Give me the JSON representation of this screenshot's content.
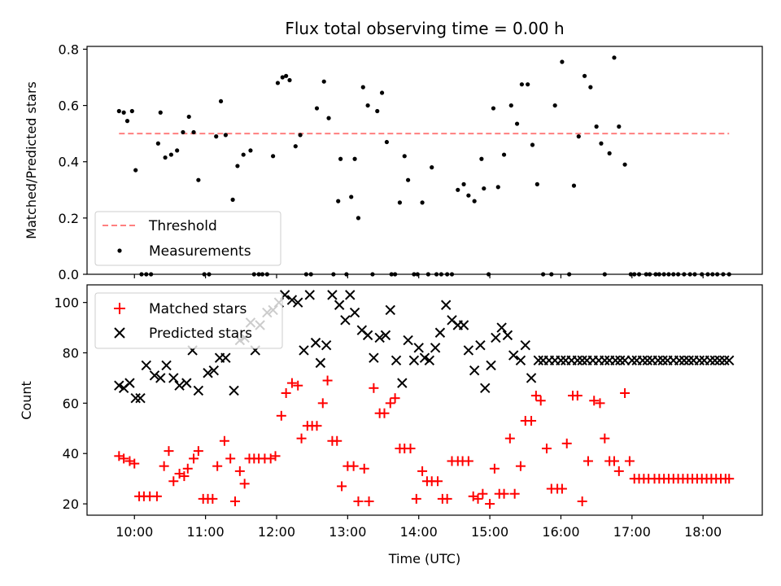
{
  "chart_data": [
    {
      "type": "scatter",
      "title": "Flux total observing time = 0.00 h",
      "xlabel": "",
      "ylabel": "Matched/Predicted stars",
      "x_unit": "hours UTC",
      "xlim": [
        "09:20",
        "18:50"
      ],
      "ylim": [
        0,
        0.81
      ],
      "yticks": [
        0.0,
        0.2,
        0.4,
        0.6,
        0.8
      ],
      "ytick_labels": [
        "0.0",
        "0.2",
        "0.4",
        "0.6",
        "0.8"
      ],
      "grid": false,
      "legend_position": "lower-left",
      "series": [
        {
          "name": "Threshold",
          "style": "dashed-line",
          "color": "#ff7f7f",
          "x": [
            "09:47",
            "18:22"
          ],
          "y": [
            0.5,
            0.5
          ]
        },
        {
          "name": "Measurements",
          "style": "dot",
          "color": "#000000",
          "x": [
            "09:47",
            "09:51",
            "09:54",
            "09:58",
            "10:01",
            "10:06",
            "10:10",
            "10:14",
            "10:20",
            "10:22",
            "10:26",
            "10:31",
            "10:36",
            "10:41",
            "10:46",
            "10:50",
            "10:54",
            "10:59",
            "11:03",
            "11:09",
            "11:13",
            "11:17",
            "11:23",
            "11:27",
            "11:32",
            "11:38",
            "11:41",
            "11:45",
            "11:48",
            "11:52",
            "11:57",
            "12:01",
            "12:05",
            "12:08",
            "12:11",
            "12:16",
            "12:20",
            "12:25",
            "12:29",
            "12:34",
            "12:40",
            "12:44",
            "12:48",
            "12:52",
            "12:54",
            "12:59",
            "13:03",
            "13:06",
            "13:09",
            "13:13",
            "13:17",
            "13:21",
            "13:25",
            "13:29",
            "13:33",
            "13:37",
            "13:40",
            "13:44",
            "13:48",
            "13:51",
            "13:56",
            "13:59",
            "14:03",
            "14:08",
            "14:11",
            "14:15",
            "14:19",
            "14:24",
            "14:28",
            "14:33",
            "14:38",
            "14:42",
            "14:47",
            "14:53",
            "14:55",
            "14:59",
            "15:03",
            "15:07",
            "15:12",
            "15:18",
            "15:23",
            "15:27",
            "15:32",
            "15:36",
            "15:40",
            "15:45",
            "15:52",
            "15:55",
            "16:01",
            "16:07",
            "16:11",
            "16:15",
            "16:20",
            "16:25",
            "16:30",
            "16:34",
            "16:37",
            "16:41",
            "16:45",
            "16:49",
            "16:54",
            "16:59",
            "17:02",
            "17:06",
            "17:12",
            "17:15",
            "17:20",
            "17:23",
            "17:27",
            "17:31",
            "17:35",
            "17:39",
            "17:44",
            "17:49",
            "17:53",
            "17:59",
            "18:04",
            "18:08",
            "18:12",
            "18:17",
            "18:22"
          ],
          "y": [
            0.58,
            0.575,
            0.545,
            0.58,
            0.37,
            0.0,
            0.0,
            0.0,
            0.465,
            0.575,
            0.415,
            0.425,
            0.44,
            0.505,
            0.56,
            0.505,
            0.335,
            0.0,
            0.0,
            0.49,
            0.615,
            0.495,
            0.265,
            0.385,
            0.425,
            0.44,
            0.0,
            0.0,
            0.0,
            0.0,
            0.42,
            0.68,
            0.7,
            0.705,
            0.69,
            0.455,
            0.495,
            0.0,
            0.0,
            0.59,
            0.685,
            0.555,
            0.0,
            0.26,
            0.41,
            0.0,
            0.275,
            0.41,
            0.2,
            0.665,
            0.6,
            0.0,
            0.58,
            0.645,
            0.47,
            0.0,
            0.0,
            0.255,
            0.42,
            0.335,
            0.0,
            0.0,
            0.255,
            0.0,
            0.38,
            0.0,
            0.0,
            0.0,
            0.0,
            0.3,
            0.32,
            0.28,
            0.26,
            0.41,
            0.305,
            0.0,
            0.59,
            0.31,
            0.425,
            0.6,
            0.535,
            0.675,
            0.675,
            0.46,
            0.32,
            0.0,
            0.0,
            0.6,
            0.755,
            0.0,
            0.315,
            0.49,
            0.705,
            0.665,
            0.525,
            0.465,
            0.0,
            0.43,
            0.77,
            0.525,
            0.39,
            0.0,
            0.0,
            0.0,
            0.0,
            0.0,
            0.0,
            0.0,
            0.0,
            0.0,
            0.0,
            0.0,
            0.0,
            0.0,
            0.0,
            0.0,
            0.0,
            0.0,
            0.0,
            0.0,
            0.0
          ]
        }
      ]
    },
    {
      "type": "scatter",
      "title": "",
      "xlabel": "Time (UTC)",
      "ylabel": "Count",
      "xlim": [
        "09:20",
        "18:50"
      ],
      "xticks": [
        "10:00",
        "11:00",
        "12:00",
        "13:00",
        "14:00",
        "15:00",
        "16:00",
        "17:00",
        "18:00"
      ],
      "ylim": [
        15.5,
        107
      ],
      "yticks": [
        20,
        40,
        60,
        80,
        100
      ],
      "ytick_labels": [
        "20",
        "40",
        "60",
        "80",
        "100"
      ],
      "grid": false,
      "legend_position": "top-left",
      "series": [
        {
          "name": "Matched stars",
          "marker": "plus",
          "color": "#ff0000",
          "x": [
            "09:47",
            "09:51",
            "09:56",
            "10:00",
            "10:04",
            "10:08",
            "10:13",
            "10:19",
            "10:25",
            "10:29",
            "10:33",
            "10:38",
            "10:42",
            "10:45",
            "10:50",
            "10:54",
            "10:58",
            "11:02",
            "11:06",
            "11:10",
            "11:16",
            "11:21",
            "11:25",
            "11:29",
            "11:33",
            "11:37",
            "11:41",
            "11:45",
            "11:50",
            "11:55",
            "11:59",
            "12:04",
            "12:08",
            "12:13",
            "12:18",
            "12:21",
            "12:26",
            "12:30",
            "12:34",
            "12:39",
            "12:43",
            "12:47",
            "12:51",
            "12:55",
            "13:00",
            "13:05",
            "13:09",
            "13:14",
            "13:18",
            "13:22",
            "13:27",
            "13:31",
            "13:36",
            "13:40",
            "13:44",
            "13:48",
            "13:53",
            "13:58",
            "14:03",
            "14:07",
            "14:11",
            "14:16",
            "14:20",
            "14:24",
            "14:28",
            "14:33",
            "14:37",
            "14:42",
            "14:46",
            "14:50",
            "14:54",
            "15:00",
            "15:04",
            "15:08",
            "15:12",
            "15:17",
            "15:21",
            "15:26",
            "15:30",
            "15:35",
            "15:39",
            "15:43",
            "15:48",
            "15:52",
            "15:57",
            "16:01",
            "16:05",
            "16:10",
            "16:14",
            "16:18",
            "16:23",
            "16:28",
            "16:33",
            "16:37",
            "16:41",
            "16:45",
            "16:49",
            "16:54",
            "16:58",
            "17:02",
            "17:06",
            "17:10",
            "17:14",
            "17:19",
            "17:23",
            "17:27",
            "17:31",
            "17:35",
            "17:39",
            "17:43",
            "17:47",
            "17:51",
            "17:55",
            "17:59",
            "18:03",
            "18:07",
            "18:11",
            "18:15",
            "18:19",
            "18:22"
          ],
          "y": [
            39,
            38,
            37,
            36,
            23,
            23,
            23,
            23,
            35,
            41,
            29,
            32,
            31,
            34,
            38,
            41,
            22,
            22,
            22,
            35,
            45,
            38,
            21,
            33,
            28,
            38,
            38,
            38,
            38,
            38,
            39,
            55,
            64,
            68,
            67,
            46,
            51,
            51,
            51,
            60,
            69,
            45,
            45,
            27,
            35,
            35,
            21,
            34,
            21,
            66,
            56,
            56,
            60,
            62,
            42,
            42,
            42,
            22,
            33,
            29,
            29,
            29,
            22,
            22,
            37,
            37,
            37,
            37,
            23,
            22,
            24,
            20,
            34,
            24,
            24,
            46,
            24,
            35,
            53,
            53,
            63,
            61,
            42,
            26,
            26,
            26,
            44,
            63,
            63,
            21,
            37,
            61,
            60,
            46,
            37,
            37,
            33,
            64,
            37,
            30,
            30,
            30,
            30,
            30,
            30,
            30,
            30,
            30,
            30,
            30,
            30,
            30,
            30,
            30,
            30,
            30,
            30,
            30,
            30,
            30
          ]
        },
        {
          "name": "Predicted stars",
          "marker": "x",
          "color": "#000000",
          "x": [
            "09:47",
            "09:51",
            "09:56",
            "10:01",
            "10:05",
            "10:10",
            "10:17",
            "10:22",
            "10:27",
            "10:33",
            "10:38",
            "10:44",
            "10:49",
            "10:54",
            "11:02",
            "11:07",
            "11:12",
            "11:17",
            "11:24",
            "11:29",
            "11:33",
            "11:38",
            "11:42",
            "11:46",
            "11:52",
            "11:57",
            "12:02",
            "12:07",
            "12:13",
            "12:18",
            "12:23",
            "12:28",
            "12:33",
            "12:37",
            "12:42",
            "12:47",
            "12:53",
            "12:58",
            "13:02",
            "13:06",
            "13:12",
            "13:17",
            "13:22",
            "13:27",
            "13:32",
            "13:36",
            "13:41",
            "13:46",
            "13:51",
            "13:56",
            "14:00",
            "14:05",
            "14:09",
            "14:14",
            "14:18",
            "14:23",
            "14:28",
            "14:33",
            "14:38",
            "14:42",
            "14:47",
            "14:52",
            "14:56",
            "15:01",
            "15:05",
            "15:10",
            "15:15",
            "15:20",
            "15:26",
            "15:30",
            "15:35",
            "15:41",
            "15:45",
            "15:50",
            "15:55",
            "16:00",
            "16:04",
            "16:09",
            "16:14",
            "16:18",
            "16:22",
            "16:27",
            "16:32",
            "16:37",
            "16:41",
            "16:46",
            "16:50",
            "16:54",
            "17:00",
            "17:04",
            "17:09",
            "17:13",
            "17:17",
            "17:22",
            "17:26",
            "17:30",
            "17:35",
            "17:40",
            "17:44",
            "17:48",
            "17:52",
            "17:57",
            "18:01",
            "18:06",
            "18:10",
            "18:14",
            "18:18",
            "18:22"
          ],
          "y": [
            67,
            66,
            68,
            62,
            62,
            75,
            71,
            70,
            75,
            70,
            67,
            68,
            81,
            65,
            72,
            73,
            78,
            78,
            65,
            85,
            86,
            92,
            81,
            91,
            96,
            97,
            100,
            103,
            101,
            100,
            81,
            103,
            84,
            76,
            83,
            103,
            99,
            93,
            103,
            96,
            89,
            87,
            78,
            86,
            87,
            97,
            77,
            68,
            85,
            77,
            82,
            78,
            77,
            82,
            88,
            99,
            93,
            91,
            91,
            81,
            73,
            83,
            66,
            75,
            86,
            90,
            87,
            79,
            77,
            83,
            70,
            77,
            77,
            77,
            77,
            77,
            77,
            77,
            77,
            77,
            77,
            77,
            77,
            77,
            77,
            77,
            77,
            77,
            77,
            77,
            77,
            77,
            77,
            77,
            77,
            77,
            77,
            77,
            77,
            77,
            77,
            77,
            77,
            77,
            77,
            77,
            77,
            77
          ]
        }
      ]
    }
  ]
}
